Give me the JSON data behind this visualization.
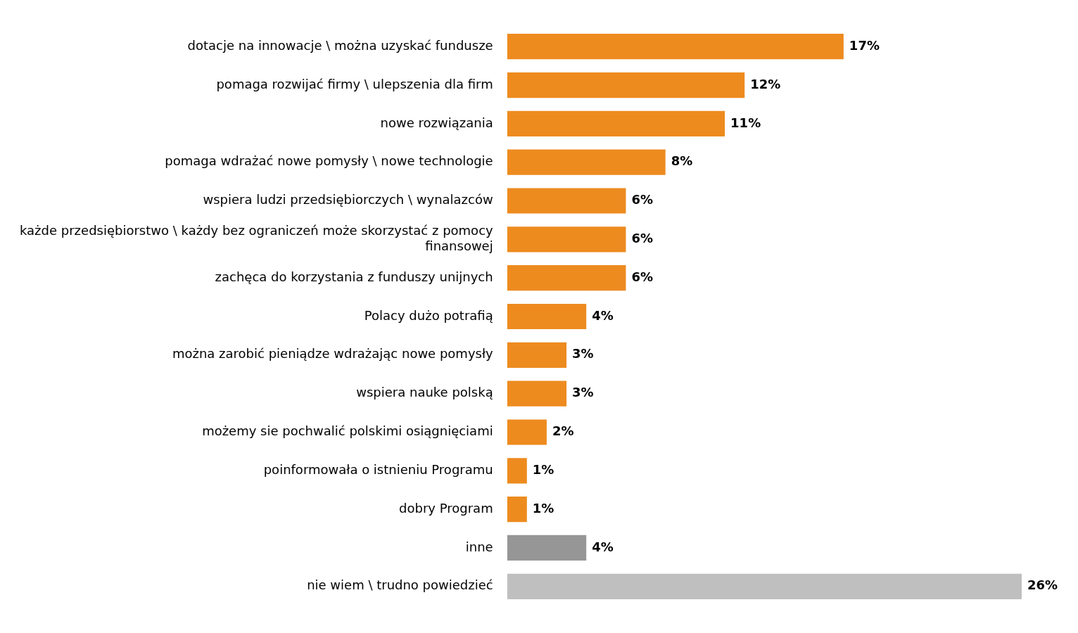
{
  "chart_data": {
    "type": "bar",
    "orientation": "horizontal",
    "categories": [
      "dotacje na innowacje \\ można uzyskać fundusze",
      "pomaga rozwijać firmy \\ ulepszenia dla firm",
      "nowe rozwiązania",
      "pomaga wdrażać nowe pomysły \\ nowe technologie",
      "wspiera ludzi przedsiębiorczych \\ wynalazców",
      "każde przedsiębiorstwo \\ każdy bez ograniczeń może skorzystać z pomocy finansowej",
      "zachęca do korzystania z funduszy unijnych",
      "Polacy dużo potrafią",
      "można zarobić pieniądze wdrażając nowe pomysły",
      "wspiera nauke polską",
      "możemy sie pochwalić polskimi osiągnięciami",
      "poinformowała o istnieniu Programu",
      "dobry Program",
      "inne",
      "nie wiem \\ trudno powiedzieć"
    ],
    "values": [
      17,
      12,
      11,
      8,
      6,
      6,
      6,
      4,
      3,
      3,
      2,
      1,
      1,
      4,
      26
    ],
    "value_labels": [
      "17%",
      "12%",
      "11%",
      "8%",
      "6%",
      "6%",
      "6%",
      "4%",
      "3%",
      "3%",
      "2%",
      "1%",
      "1%",
      "4%",
      "26%"
    ],
    "colors": [
      "#ed8b1f",
      "#ed8b1f",
      "#ed8b1f",
      "#ed8b1f",
      "#ed8b1f",
      "#ed8b1f",
      "#ed8b1f",
      "#ed8b1f",
      "#ed8b1f",
      "#ed8b1f",
      "#ed8b1f",
      "#ed8b1f",
      "#ed8b1f",
      "#969696",
      "#bfbfbf"
    ],
    "xlim": [
      0,
      26
    ]
  }
}
